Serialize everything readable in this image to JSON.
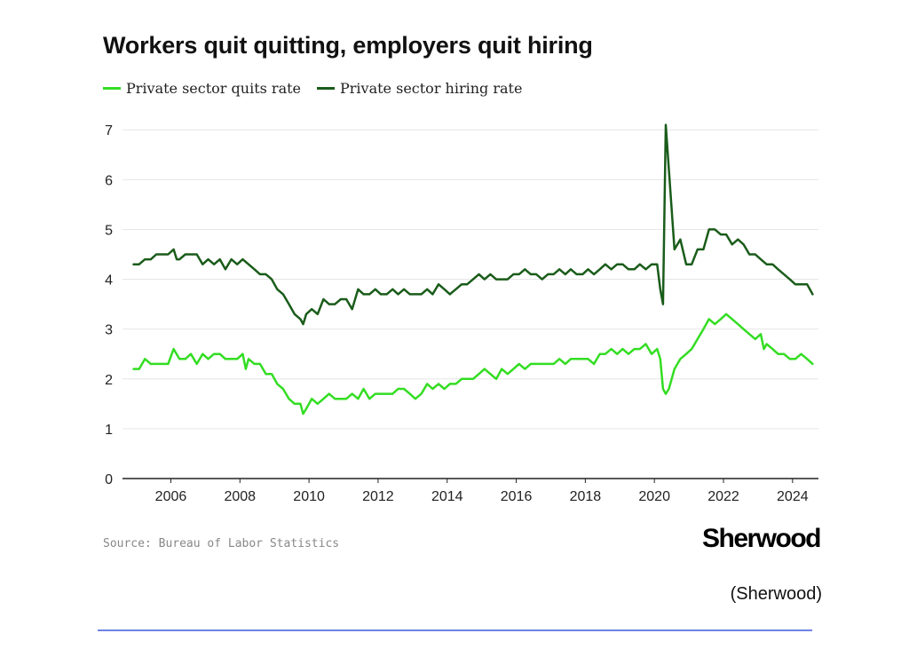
{
  "caption": "(Sherwood)",
  "source": "Source: Bureau of Labor Statistics",
  "brand": "Sherwood",
  "chart_data": {
    "type": "line",
    "title": "Workers quit quitting, employers quit hiring",
    "xlabel": "",
    "ylabel": "",
    "xlim": [
      2004.6,
      2024.75
    ],
    "ylim": [
      0,
      7.2
    ],
    "yticks": [
      0,
      1,
      2,
      3,
      4,
      5,
      6,
      7
    ],
    "xticks": [
      2006,
      2008,
      2010,
      2012,
      2014,
      2016,
      2018,
      2020,
      2022,
      2024
    ],
    "grid": true,
    "legend": "top-left",
    "series": [
      {
        "name": "Private sector quits rate",
        "color": "#33dd22",
        "points": [
          [
            2004.92,
            2.2
          ],
          [
            2005.08,
            2.2
          ],
          [
            2005.25,
            2.4
          ],
          [
            2005.42,
            2.3
          ],
          [
            2005.58,
            2.3
          ],
          [
            2005.75,
            2.3
          ],
          [
            2005.92,
            2.3
          ],
          [
            2006.08,
            2.6
          ],
          [
            2006.25,
            2.4
          ],
          [
            2006.42,
            2.4
          ],
          [
            2006.58,
            2.5
          ],
          [
            2006.75,
            2.3
          ],
          [
            2006.92,
            2.5
          ],
          [
            2007.08,
            2.4
          ],
          [
            2007.25,
            2.5
          ],
          [
            2007.42,
            2.5
          ],
          [
            2007.58,
            2.4
          ],
          [
            2007.75,
            2.4
          ],
          [
            2007.92,
            2.4
          ],
          [
            2008.08,
            2.5
          ],
          [
            2008.17,
            2.2
          ],
          [
            2008.25,
            2.4
          ],
          [
            2008.42,
            2.3
          ],
          [
            2008.58,
            2.3
          ],
          [
            2008.75,
            2.1
          ],
          [
            2008.92,
            2.1
          ],
          [
            2009.08,
            1.9
          ],
          [
            2009.25,
            1.8
          ],
          [
            2009.42,
            1.6
          ],
          [
            2009.58,
            1.5
          ],
          [
            2009.75,
            1.5
          ],
          [
            2009.83,
            1.3
          ],
          [
            2009.92,
            1.4
          ],
          [
            2010.08,
            1.6
          ],
          [
            2010.25,
            1.5
          ],
          [
            2010.42,
            1.6
          ],
          [
            2010.58,
            1.7
          ],
          [
            2010.75,
            1.6
          ],
          [
            2010.92,
            1.6
          ],
          [
            2011.08,
            1.6
          ],
          [
            2011.25,
            1.7
          ],
          [
            2011.42,
            1.6
          ],
          [
            2011.58,
            1.8
          ],
          [
            2011.75,
            1.6
          ],
          [
            2011.92,
            1.7
          ],
          [
            2012.08,
            1.7
          ],
          [
            2012.25,
            1.7
          ],
          [
            2012.42,
            1.7
          ],
          [
            2012.58,
            1.8
          ],
          [
            2012.75,
            1.8
          ],
          [
            2012.92,
            1.7
          ],
          [
            2013.08,
            1.6
          ],
          [
            2013.25,
            1.7
          ],
          [
            2013.42,
            1.9
          ],
          [
            2013.58,
            1.8
          ],
          [
            2013.75,
            1.9
          ],
          [
            2013.92,
            1.8
          ],
          [
            2014.08,
            1.9
          ],
          [
            2014.25,
            1.9
          ],
          [
            2014.42,
            2.0
          ],
          [
            2014.58,
            2.0
          ],
          [
            2014.75,
            2.0
          ],
          [
            2014.92,
            2.1
          ],
          [
            2015.08,
            2.2
          ],
          [
            2015.25,
            2.1
          ],
          [
            2015.42,
            2.0
          ],
          [
            2015.58,
            2.2
          ],
          [
            2015.75,
            2.1
          ],
          [
            2015.92,
            2.2
          ],
          [
            2016.08,
            2.3
          ],
          [
            2016.25,
            2.2
          ],
          [
            2016.42,
            2.3
          ],
          [
            2016.58,
            2.3
          ],
          [
            2016.75,
            2.3
          ],
          [
            2016.92,
            2.3
          ],
          [
            2017.08,
            2.3
          ],
          [
            2017.25,
            2.4
          ],
          [
            2017.42,
            2.3
          ],
          [
            2017.58,
            2.4
          ],
          [
            2017.75,
            2.4
          ],
          [
            2017.92,
            2.4
          ],
          [
            2018.08,
            2.4
          ],
          [
            2018.25,
            2.3
          ],
          [
            2018.42,
            2.5
          ],
          [
            2018.58,
            2.5
          ],
          [
            2018.75,
            2.6
          ],
          [
            2018.92,
            2.5
          ],
          [
            2019.08,
            2.6
          ],
          [
            2019.25,
            2.5
          ],
          [
            2019.42,
            2.6
          ],
          [
            2019.58,
            2.6
          ],
          [
            2019.75,
            2.7
          ],
          [
            2019.92,
            2.5
          ],
          [
            2020.08,
            2.6
          ],
          [
            2020.17,
            2.4
          ],
          [
            2020.25,
            1.8
          ],
          [
            2020.33,
            1.7
          ],
          [
            2020.42,
            1.8
          ],
          [
            2020.58,
            2.2
          ],
          [
            2020.75,
            2.4
          ],
          [
            2020.92,
            2.5
          ],
          [
            2021.08,
            2.6
          ],
          [
            2021.25,
            2.8
          ],
          [
            2021.42,
            3.0
          ],
          [
            2021.58,
            3.2
          ],
          [
            2021.75,
            3.1
          ],
          [
            2021.92,
            3.2
          ],
          [
            2022.08,
            3.3
          ],
          [
            2022.25,
            3.2
          ],
          [
            2022.42,
            3.1
          ],
          [
            2022.58,
            3.0
          ],
          [
            2022.75,
            2.9
          ],
          [
            2022.92,
            2.8
          ],
          [
            2023.08,
            2.9
          ],
          [
            2023.17,
            2.6
          ],
          [
            2023.25,
            2.7
          ],
          [
            2023.42,
            2.6
          ],
          [
            2023.58,
            2.5
          ],
          [
            2023.75,
            2.5
          ],
          [
            2023.92,
            2.4
          ],
          [
            2024.08,
            2.4
          ],
          [
            2024.25,
            2.5
          ],
          [
            2024.42,
            2.4
          ],
          [
            2024.58,
            2.3
          ]
        ]
      },
      {
        "name": "Private sector hiring rate",
        "color": "#1a5c1a",
        "points": [
          [
            2004.92,
            4.3
          ],
          [
            2005.08,
            4.3
          ],
          [
            2005.25,
            4.4
          ],
          [
            2005.42,
            4.4
          ],
          [
            2005.58,
            4.5
          ],
          [
            2005.75,
            4.5
          ],
          [
            2005.92,
            4.5
          ],
          [
            2006.08,
            4.6
          ],
          [
            2006.17,
            4.4
          ],
          [
            2006.25,
            4.4
          ],
          [
            2006.42,
            4.5
          ],
          [
            2006.58,
            4.5
          ],
          [
            2006.75,
            4.5
          ],
          [
            2006.92,
            4.3
          ],
          [
            2007.08,
            4.4
          ],
          [
            2007.25,
            4.3
          ],
          [
            2007.42,
            4.4
          ],
          [
            2007.58,
            4.2
          ],
          [
            2007.75,
            4.4
          ],
          [
            2007.92,
            4.3
          ],
          [
            2008.08,
            4.4
          ],
          [
            2008.25,
            4.3
          ],
          [
            2008.42,
            4.2
          ],
          [
            2008.58,
            4.1
          ],
          [
            2008.75,
            4.1
          ],
          [
            2008.92,
            4.0
          ],
          [
            2009.08,
            3.8
          ],
          [
            2009.25,
            3.7
          ],
          [
            2009.42,
            3.5
          ],
          [
            2009.58,
            3.3
          ],
          [
            2009.75,
            3.2
          ],
          [
            2009.83,
            3.1
          ],
          [
            2009.92,
            3.3
          ],
          [
            2010.08,
            3.4
          ],
          [
            2010.25,
            3.3
          ],
          [
            2010.42,
            3.6
          ],
          [
            2010.58,
            3.5
          ],
          [
            2010.75,
            3.5
          ],
          [
            2010.92,
            3.6
          ],
          [
            2011.08,
            3.6
          ],
          [
            2011.25,
            3.4
          ],
          [
            2011.42,
            3.8
          ],
          [
            2011.58,
            3.7
          ],
          [
            2011.75,
            3.7
          ],
          [
            2011.92,
            3.8
          ],
          [
            2012.08,
            3.7
          ],
          [
            2012.25,
            3.7
          ],
          [
            2012.42,
            3.8
          ],
          [
            2012.58,
            3.7
          ],
          [
            2012.75,
            3.8
          ],
          [
            2012.92,
            3.7
          ],
          [
            2013.08,
            3.7
          ],
          [
            2013.25,
            3.7
          ],
          [
            2013.42,
            3.8
          ],
          [
            2013.58,
            3.7
          ],
          [
            2013.75,
            3.9
          ],
          [
            2013.92,
            3.8
          ],
          [
            2014.08,
            3.7
          ],
          [
            2014.25,
            3.8
          ],
          [
            2014.42,
            3.9
          ],
          [
            2014.58,
            3.9
          ],
          [
            2014.75,
            4.0
          ],
          [
            2014.92,
            4.1
          ],
          [
            2015.08,
            4.0
          ],
          [
            2015.25,
            4.1
          ],
          [
            2015.42,
            4.0
          ],
          [
            2015.58,
            4.0
          ],
          [
            2015.75,
            4.0
          ],
          [
            2015.92,
            4.1
          ],
          [
            2016.08,
            4.1
          ],
          [
            2016.25,
            4.2
          ],
          [
            2016.42,
            4.1
          ],
          [
            2016.58,
            4.1
          ],
          [
            2016.75,
            4.0
          ],
          [
            2016.92,
            4.1
          ],
          [
            2017.08,
            4.1
          ],
          [
            2017.25,
            4.2
          ],
          [
            2017.42,
            4.1
          ],
          [
            2017.58,
            4.2
          ],
          [
            2017.75,
            4.1
          ],
          [
            2017.92,
            4.1
          ],
          [
            2018.08,
            4.2
          ],
          [
            2018.25,
            4.1
          ],
          [
            2018.42,
            4.2
          ],
          [
            2018.58,
            4.3
          ],
          [
            2018.75,
            4.2
          ],
          [
            2018.92,
            4.3
          ],
          [
            2019.08,
            4.3
          ],
          [
            2019.25,
            4.2
          ],
          [
            2019.42,
            4.2
          ],
          [
            2019.58,
            4.3
          ],
          [
            2019.75,
            4.2
          ],
          [
            2019.92,
            4.3
          ],
          [
            2020.08,
            4.3
          ],
          [
            2020.17,
            3.8
          ],
          [
            2020.25,
            3.5
          ],
          [
            2020.33,
            7.1
          ],
          [
            2020.42,
            6.2
          ],
          [
            2020.58,
            4.6
          ],
          [
            2020.75,
            4.8
          ],
          [
            2020.92,
            4.3
          ],
          [
            2021.08,
            4.3
          ],
          [
            2021.25,
            4.6
          ],
          [
            2021.42,
            4.6
          ],
          [
            2021.58,
            5.0
          ],
          [
            2021.75,
            5.0
          ],
          [
            2021.92,
            4.9
          ],
          [
            2022.08,
            4.9
          ],
          [
            2022.25,
            4.7
          ],
          [
            2022.42,
            4.8
          ],
          [
            2022.58,
            4.7
          ],
          [
            2022.75,
            4.5
          ],
          [
            2022.92,
            4.5
          ],
          [
            2023.08,
            4.4
          ],
          [
            2023.25,
            4.3
          ],
          [
            2023.42,
            4.3
          ],
          [
            2023.58,
            4.2
          ],
          [
            2023.75,
            4.1
          ],
          [
            2023.92,
            4.0
          ],
          [
            2024.08,
            3.9
          ],
          [
            2024.25,
            3.9
          ],
          [
            2024.42,
            3.9
          ],
          [
            2024.58,
            3.7
          ]
        ]
      }
    ]
  }
}
